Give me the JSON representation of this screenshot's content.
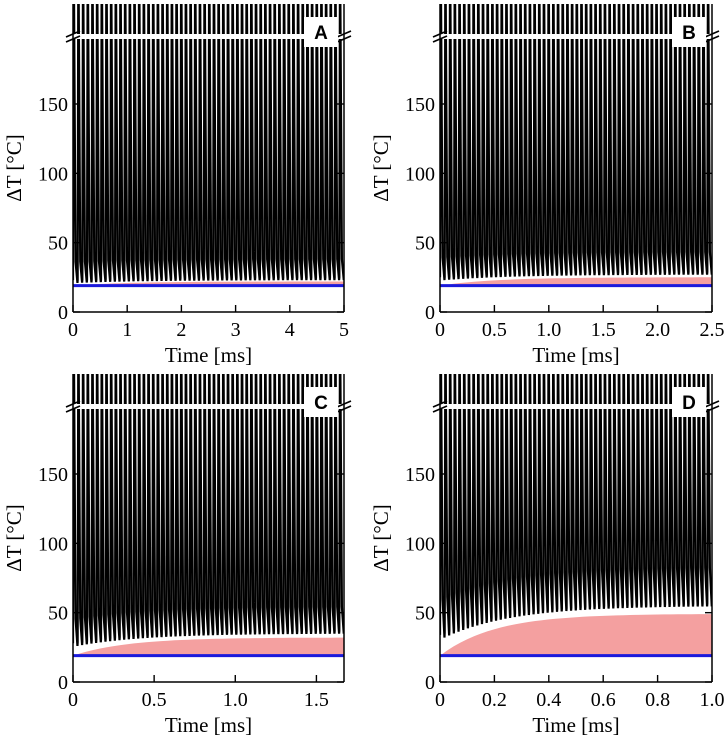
{
  "chart_data": [
    {
      "panel": "A",
      "type": "line",
      "xlabel": "Time [ms]",
      "ylabel": "ΔT [°C]",
      "xlim": [
        0,
        5
      ],
      "ylim": [
        0,
        200
      ],
      "xticks": [
        0,
        1,
        2,
        3,
        4,
        5
      ],
      "xtick_labels": [
        "0",
        "1",
        "2",
        "3",
        "4",
        "5"
      ],
      "yticks": [
        0,
        50,
        100,
        150
      ],
      "ytick_labels": [
        "0",
        "50",
        "100",
        "150"
      ],
      "pulses": 58,
      "spike_peak": "off-scale",
      "trough_start": 21,
      "trough_end": 23,
      "baseline": 19,
      "shaded_band": [
        19,
        22
      ],
      "axis_break": true,
      "colors": {
        "trace": "#000000",
        "band": "#f4a0a0",
        "baseline": "#1a1adc"
      }
    },
    {
      "panel": "B",
      "type": "line",
      "xlabel": "Time [ms]",
      "ylabel": "ΔT [°C]",
      "xlim": [
        0,
        2.5
      ],
      "ylim": [
        0,
        200
      ],
      "xticks": [
        0,
        0.5,
        1.0,
        1.5,
        2.0,
        2.5
      ],
      "xtick_labels": [
        "0",
        "0.5",
        "1.0",
        "1.5",
        "2.0",
        "2.5"
      ],
      "yticks": [
        0,
        50,
        100,
        150
      ],
      "ytick_labels": [
        "0",
        "50",
        "100",
        "150"
      ],
      "pulses": 58,
      "spike_peak": "off-scale",
      "trough_start": 23,
      "trough_end": 27,
      "baseline": 19,
      "shaded_band": [
        19,
        25
      ],
      "axis_break": true,
      "colors": {
        "trace": "#000000",
        "band": "#f4a0a0",
        "baseline": "#1a1adc"
      }
    },
    {
      "panel": "C",
      "type": "line",
      "xlabel": "Time [ms]",
      "ylabel": "ΔT [°C]",
      "xlim": [
        0,
        1.67
      ],
      "ylim": [
        0,
        200
      ],
      "xticks": [
        0,
        0.5,
        1.0,
        1.5
      ],
      "xtick_labels": [
        "0",
        "0.5",
        "1.0",
        "1.5"
      ],
      "yticks": [
        0,
        50,
        100,
        150
      ],
      "ytick_labels": [
        "0",
        "50",
        "100",
        "150"
      ],
      "pulses": 58,
      "spike_peak": "off-scale",
      "trough_start": 26,
      "trough_end": 35,
      "baseline": 19,
      "shaded_band": [
        19,
        32
      ],
      "axis_break": true,
      "colors": {
        "trace": "#000000",
        "band": "#f4a0a0",
        "baseline": "#1a1adc"
      }
    },
    {
      "panel": "D",
      "type": "line",
      "xlabel": "Time [ms]",
      "ylabel": "ΔT [°C]",
      "xlim": [
        0,
        1.0
      ],
      "ylim": [
        0,
        200
      ],
      "xticks": [
        0,
        0.2,
        0.4,
        0.6,
        0.8,
        1.0
      ],
      "xtick_labels": [
        "0",
        "0.2",
        "0.4",
        "0.6",
        "0.8",
        "1.0"
      ],
      "yticks": [
        0,
        50,
        100,
        150
      ],
      "ytick_labels": [
        "0",
        "50",
        "100",
        "150"
      ],
      "pulses": 58,
      "spike_peak": "off-scale",
      "trough_start": 32,
      "trough_end": 55,
      "baseline": 19,
      "shaded_band": [
        19,
        49
      ],
      "axis_break": true,
      "colors": {
        "trace": "#000000",
        "band": "#f4a0a0",
        "baseline": "#1a1adc"
      }
    }
  ]
}
